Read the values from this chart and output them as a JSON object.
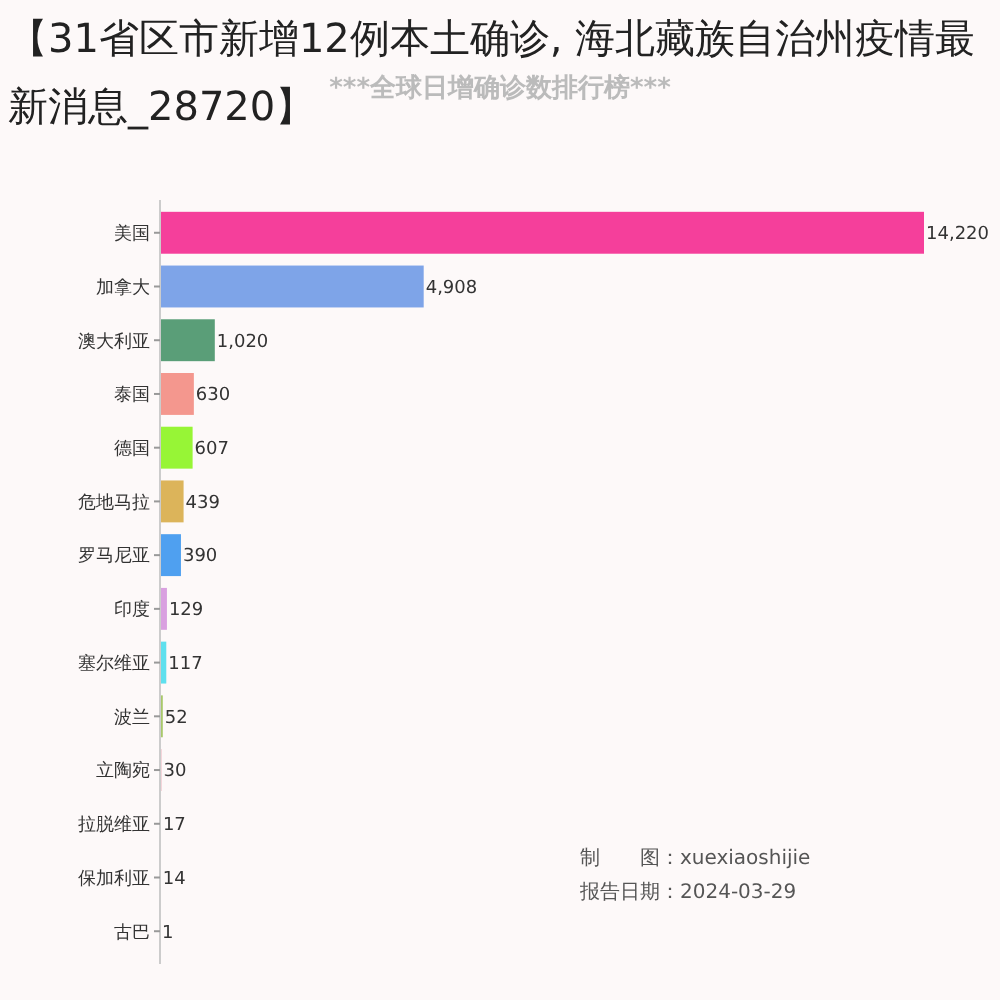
{
  "chart_data": {
    "type": "bar",
    "orientation": "horizontal",
    "title": "【31省区市新增12例本土确诊, 海北藏族自治州疫情最新消息_28720】",
    "subtitle": "***全球日增确诊数排行榜***",
    "categories": [
      "美国",
      "加拿大",
      "澳大利亚",
      "泰国",
      "德国",
      "危地马拉",
      "罗马尼亚",
      "印度",
      "塞尔维亚",
      "波兰",
      "立陶宛",
      "拉脱维亚",
      "保加利亚",
      "古巴"
    ],
    "values": [
      14220,
      4908,
      1020,
      630,
      607,
      439,
      390,
      129,
      117,
      52,
      30,
      17,
      14,
      1
    ],
    "colors": [
      "#f53f9b",
      "#7ea4e8",
      "#5a9e78",
      "#f4978e",
      "#97f536",
      "#dcb45a",
      "#4fa0f0",
      "#d9a0e0",
      "#5ee0ee",
      "#a8c86a",
      "#f0c0c8",
      "#a8a8e8",
      "#e0e0e0",
      "#d0d0d0"
    ],
    "value_labels": [
      "14,220",
      "4,908",
      "1,020",
      "630",
      "607",
      "439",
      "390",
      "129",
      "117",
      "52",
      "30",
      "17",
      "14",
      "1"
    ],
    "annotations": [
      "制　　图：xuexiaoshijie",
      "报告日期：2024-03-29"
    ]
  }
}
